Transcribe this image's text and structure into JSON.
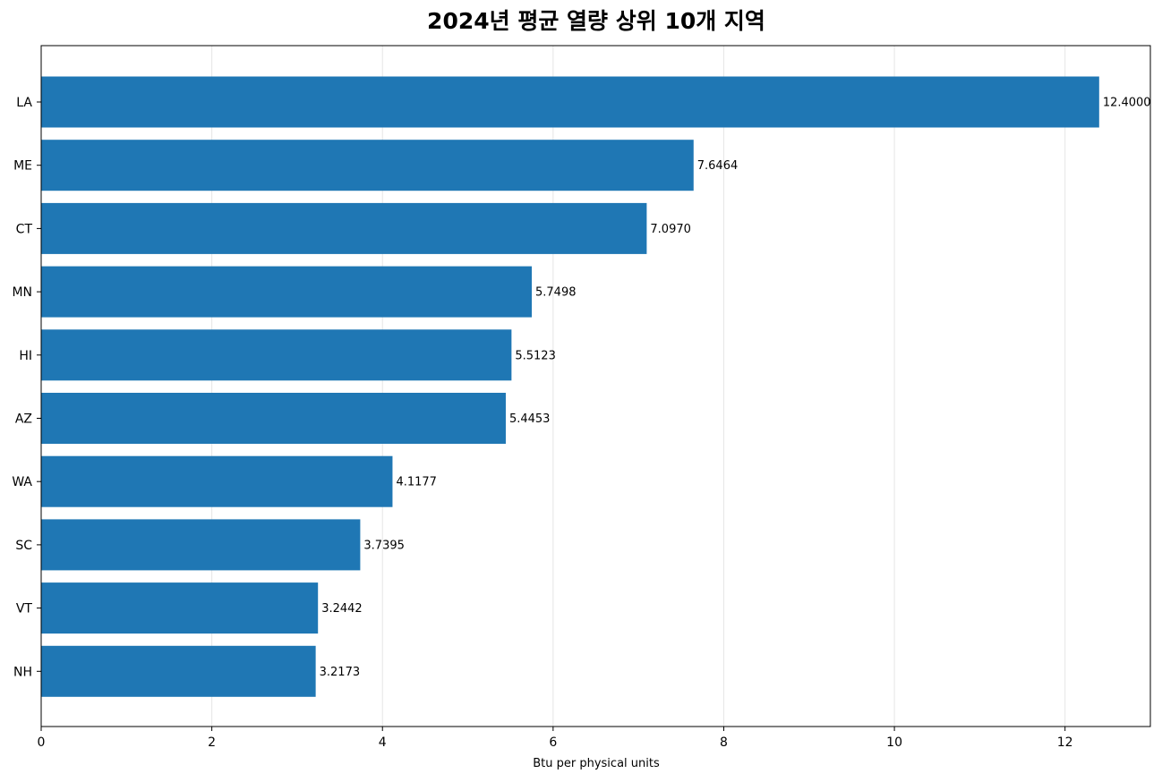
{
  "chart_data": {
    "type": "bar",
    "orientation": "horizontal",
    "title": "2024년 평균 열량 상위 10개 지역",
    "xlabel": "Btu per physical units",
    "ylabel": "",
    "categories": [
      "LA",
      "ME",
      "CT",
      "MN",
      "HI",
      "AZ",
      "WA",
      "SC",
      "VT",
      "NH"
    ],
    "values": [
      12.4,
      7.6464,
      7.097,
      5.7498,
      5.5123,
      5.4453,
      4.1177,
      3.7395,
      3.2442,
      3.2173
    ],
    "value_labels": [
      "12.4000",
      "7.6464",
      "7.0970",
      "5.7498",
      "5.5123",
      "5.4453",
      "4.1177",
      "3.7395",
      "3.2442",
      "3.2173"
    ],
    "xlim": [
      0,
      13
    ],
    "xticks": [
      0,
      2,
      4,
      6,
      8,
      10,
      12
    ],
    "grid": "x",
    "legend": "none",
    "bar_color": "#1f77b4"
  }
}
